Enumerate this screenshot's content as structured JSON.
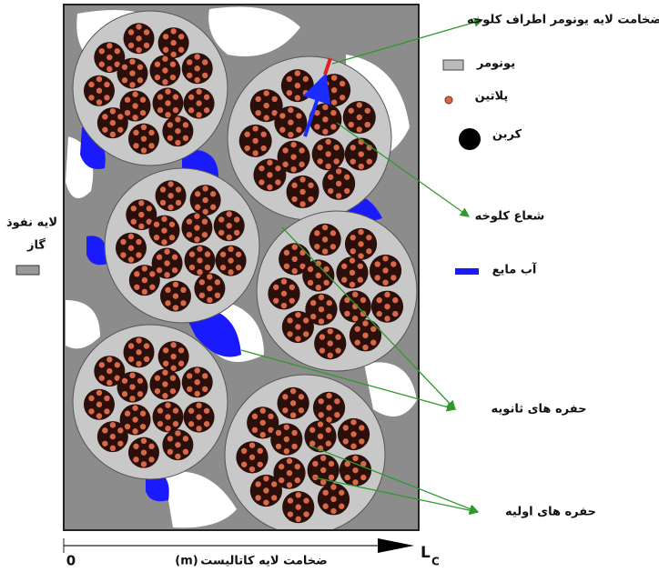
{
  "labels": {
    "ionomer_thickness": "ضخامت لایه یونومر اطراف کلوخه",
    "agglomerate_radius": "شعاع کلوخه",
    "secondary_pores": "حفره های ثانویه",
    "primary_pores": "حفره های اولیه",
    "gdl_line1": "لایه نفوذ",
    "gdl_line2": "گاز"
  },
  "legend": [
    {
      "label": "یونومر"
    },
    {
      "label": "پلاتین"
    },
    {
      "label": "کربن"
    },
    {
      "label": "آب مایع"
    }
  ],
  "axis": {
    "origin": "0",
    "label": "ضخامت لایه کاتالیست",
    "unit": "(m)",
    "end": "L",
    "end_sub": "C"
  }
}
